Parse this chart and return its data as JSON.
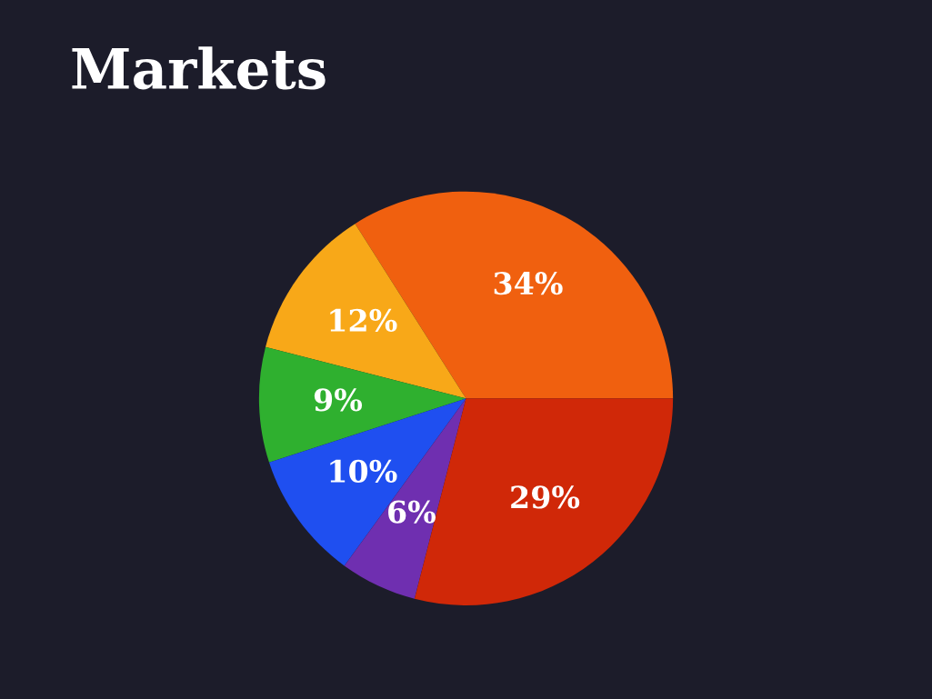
{
  "chart_data": {
    "type": "pie",
    "title": "Markets",
    "categories": [
      null,
      null,
      null,
      null,
      null,
      null
    ],
    "values": [
      34,
      12,
      9,
      10,
      6,
      29
    ],
    "colors": [
      "#f0600f",
      "#f8a818",
      "#2fb02f",
      "#1f4ff0",
      "#6f2fb0",
      "#d02808"
    ],
    "value_labels": [
      "34%",
      "12%",
      "9%",
      "10%",
      "6%",
      "29%"
    ]
  }
}
